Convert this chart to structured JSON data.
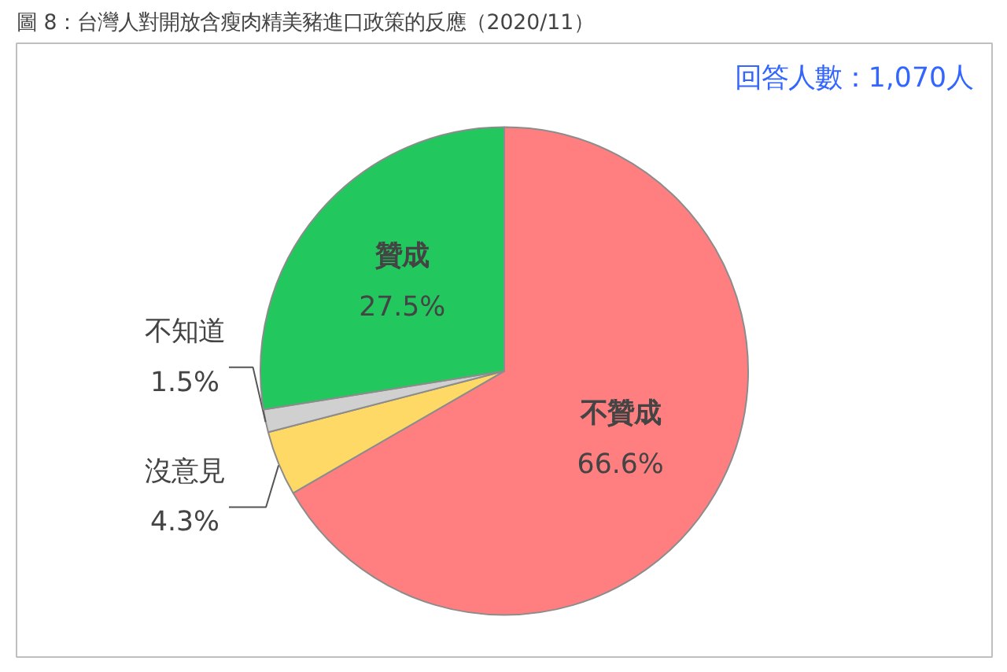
{
  "chart_data": {
    "type": "pie",
    "title": "圖 8：台灣人對開放含瘦肉精美豬進口政策的反應（2020/11）",
    "annotations": [
      "回答人數：1,070人"
    ],
    "categories": [
      "不贊成",
      "沒意見",
      "不知道",
      "贊成"
    ],
    "values": [
      66.6,
      4.3,
      1.5,
      27.5
    ],
    "value_labels": [
      "66.6%",
      "4.3%",
      "1.5%",
      "27.5%"
    ],
    "colors": [
      "#ff7f80",
      "#ffd966",
      "#d0d0d0",
      "#22c85e"
    ],
    "legend": false
  }
}
